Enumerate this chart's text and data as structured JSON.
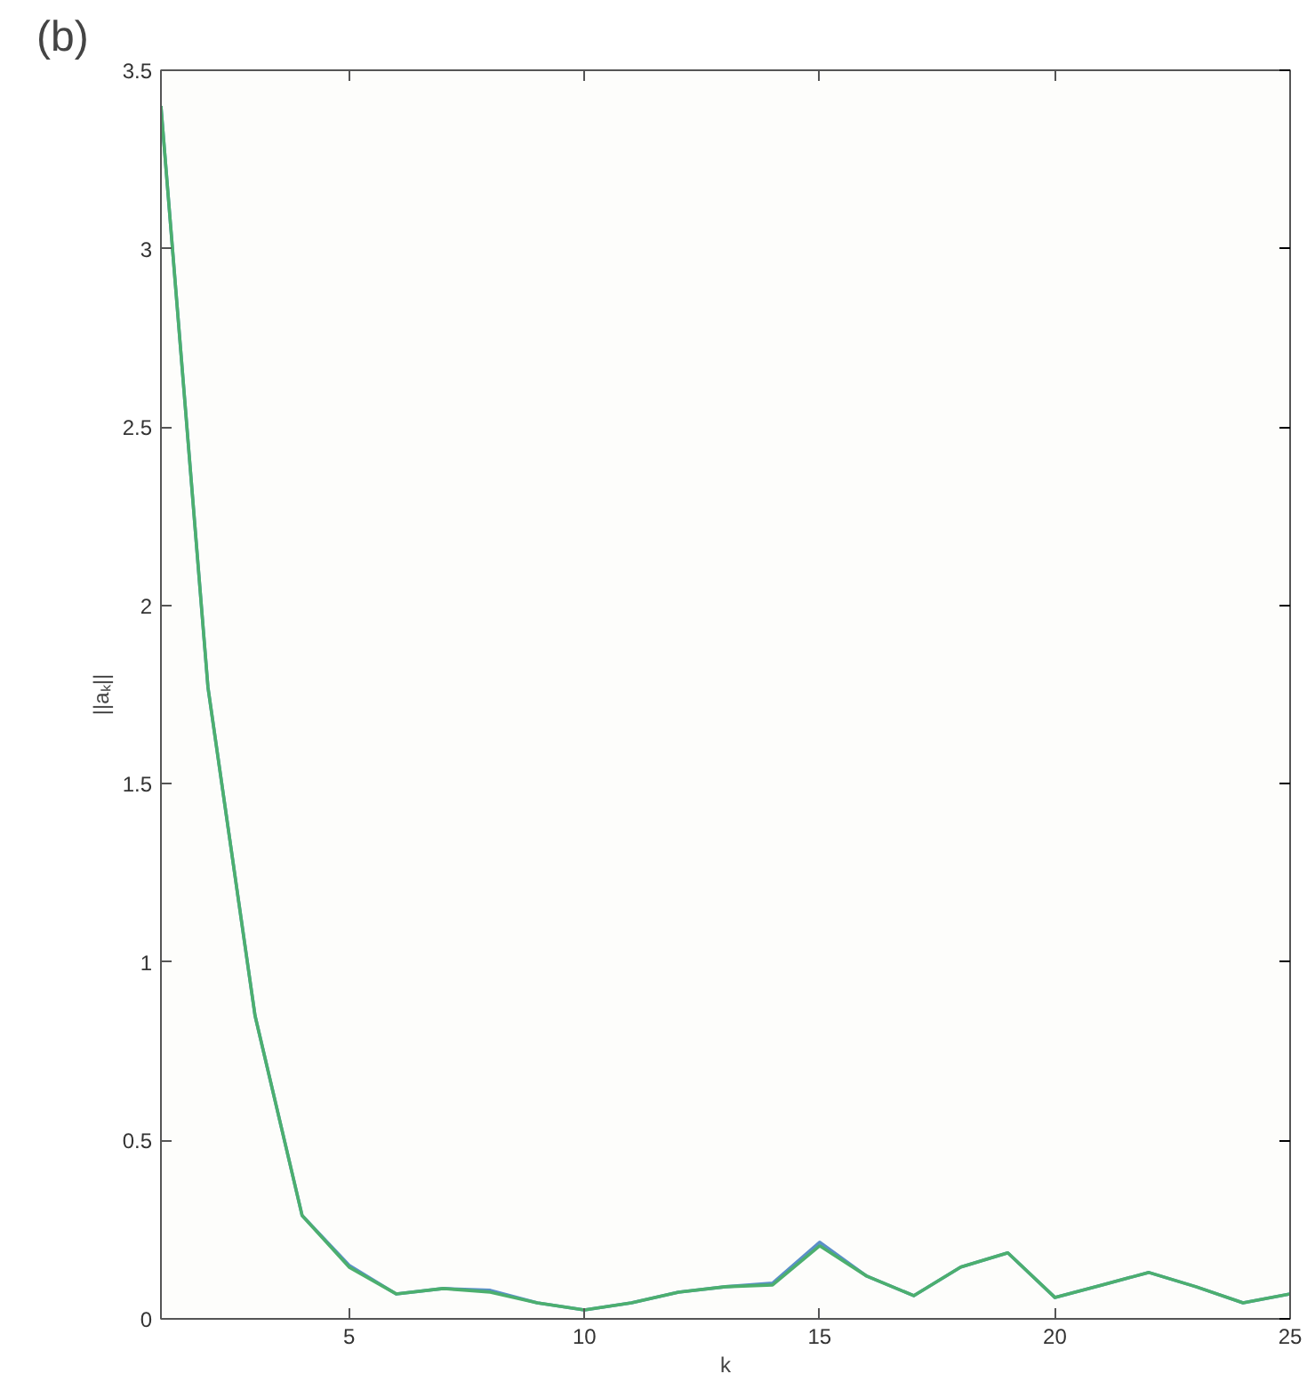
{
  "chart_data": {
    "type": "line",
    "title": "(b)",
    "xlabel": "k",
    "ylabel": "||aₖ||",
    "x": [
      1,
      2,
      3,
      4,
      5,
      6,
      7,
      8,
      9,
      10,
      11,
      12,
      13,
      14,
      15,
      16,
      17,
      18,
      19,
      20,
      21,
      22,
      23,
      24,
      25
    ],
    "series": [
      {
        "color": "#5b8fc9",
        "values": [
          3.4,
          1.77,
          0.85,
          0.29,
          0.15,
          0.07,
          0.085,
          0.08,
          0.045,
          0.025,
          0.045,
          0.075,
          0.09,
          0.1,
          0.215,
          0.12,
          0.065,
          0.145,
          0.185,
          0.06,
          0.095,
          0.13,
          0.09,
          0.045,
          0.07
        ]
      },
      {
        "color": "#4caf6e",
        "values": [
          3.4,
          1.77,
          0.85,
          0.29,
          0.145,
          0.07,
          0.085,
          0.075,
          0.045,
          0.025,
          0.045,
          0.075,
          0.09,
          0.095,
          0.205,
          0.12,
          0.065,
          0.145,
          0.185,
          0.06,
          0.095,
          0.13,
          0.09,
          0.045,
          0.07
        ]
      }
    ],
    "xlim": [
      1,
      25
    ],
    "ylim": [
      0,
      3.5
    ],
    "xticks": [
      5,
      10,
      15,
      20,
      25
    ],
    "yticks": [
      0,
      0.5,
      1,
      1.5,
      2,
      2.5,
      3,
      3.5
    ],
    "grid": false,
    "marker": "none",
    "line_style": "solid"
  }
}
